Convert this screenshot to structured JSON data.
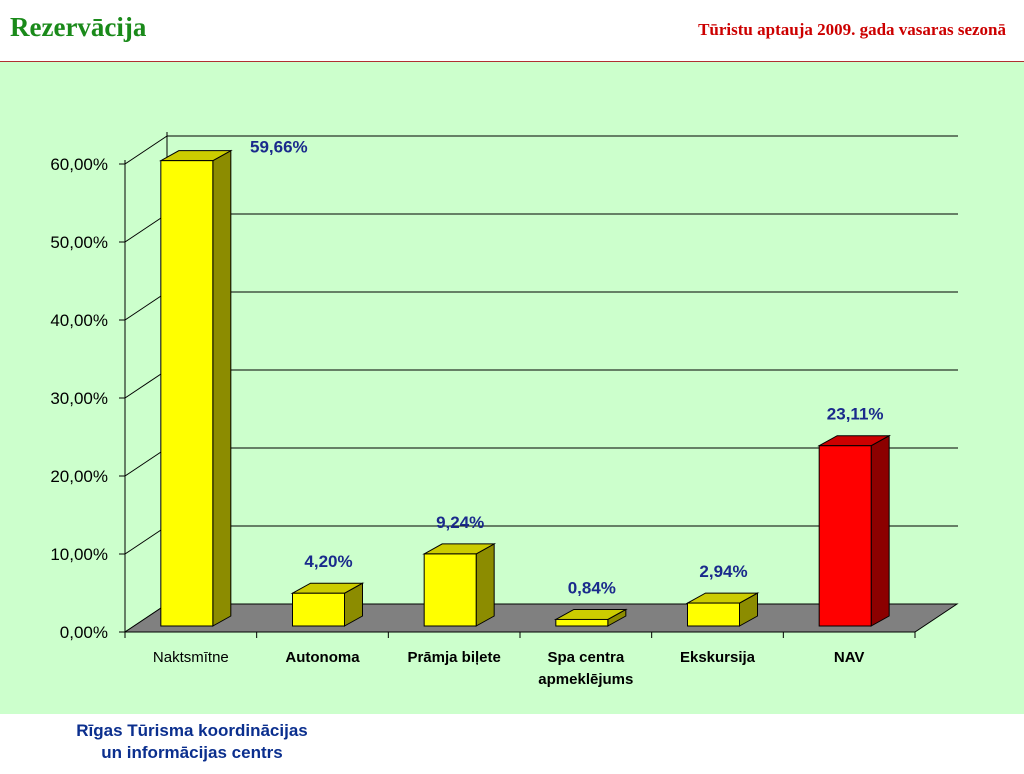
{
  "header": {
    "title": "Rezervācija",
    "subtitle": "Tūristu aptauja 2009. gada vasaras sezonā"
  },
  "footer": {
    "line1": "Rīgas Tūrisma koordinācijas",
    "line2": "un informācijas centrs"
  },
  "colors": {
    "background": "#ccffcc",
    "title": "#1a8a1a",
    "subtitle": "#cc0000",
    "footer": "#0b2f8e",
    "bar_yellow": "#ffff00",
    "bar_red": "#ff0000",
    "data_label": "#1a2a8c"
  },
  "chart_data": {
    "type": "bar",
    "categories": [
      [
        "Naktsmītne"
      ],
      [
        "Autonoma"
      ],
      [
        "Prāmja biļete"
      ],
      [
        "Spa centra",
        "apmeklējums"
      ],
      [
        "Ekskursija"
      ],
      [
        "NAV"
      ]
    ],
    "values": [
      59.66,
      4.2,
      9.24,
      0.84,
      2.94,
      23.11
    ],
    "data_labels": [
      "59,66%",
      "4,20%",
      "9,24%",
      "0,84%",
      "2,94%",
      "23,11%"
    ],
    "bar_colors": [
      "#ffff00",
      "#ffff00",
      "#ffff00",
      "#ffff00",
      "#ffff00",
      "#ff0000"
    ],
    "y_ticks": [
      0,
      10,
      20,
      30,
      40,
      50,
      60
    ],
    "y_tick_labels": [
      "0,00%",
      "10,00%",
      "20,00%",
      "30,00%",
      "40,00%",
      "50,00%",
      "60,00%"
    ],
    "ylim": [
      0,
      60
    ],
    "grid": true,
    "style": "3d"
  }
}
